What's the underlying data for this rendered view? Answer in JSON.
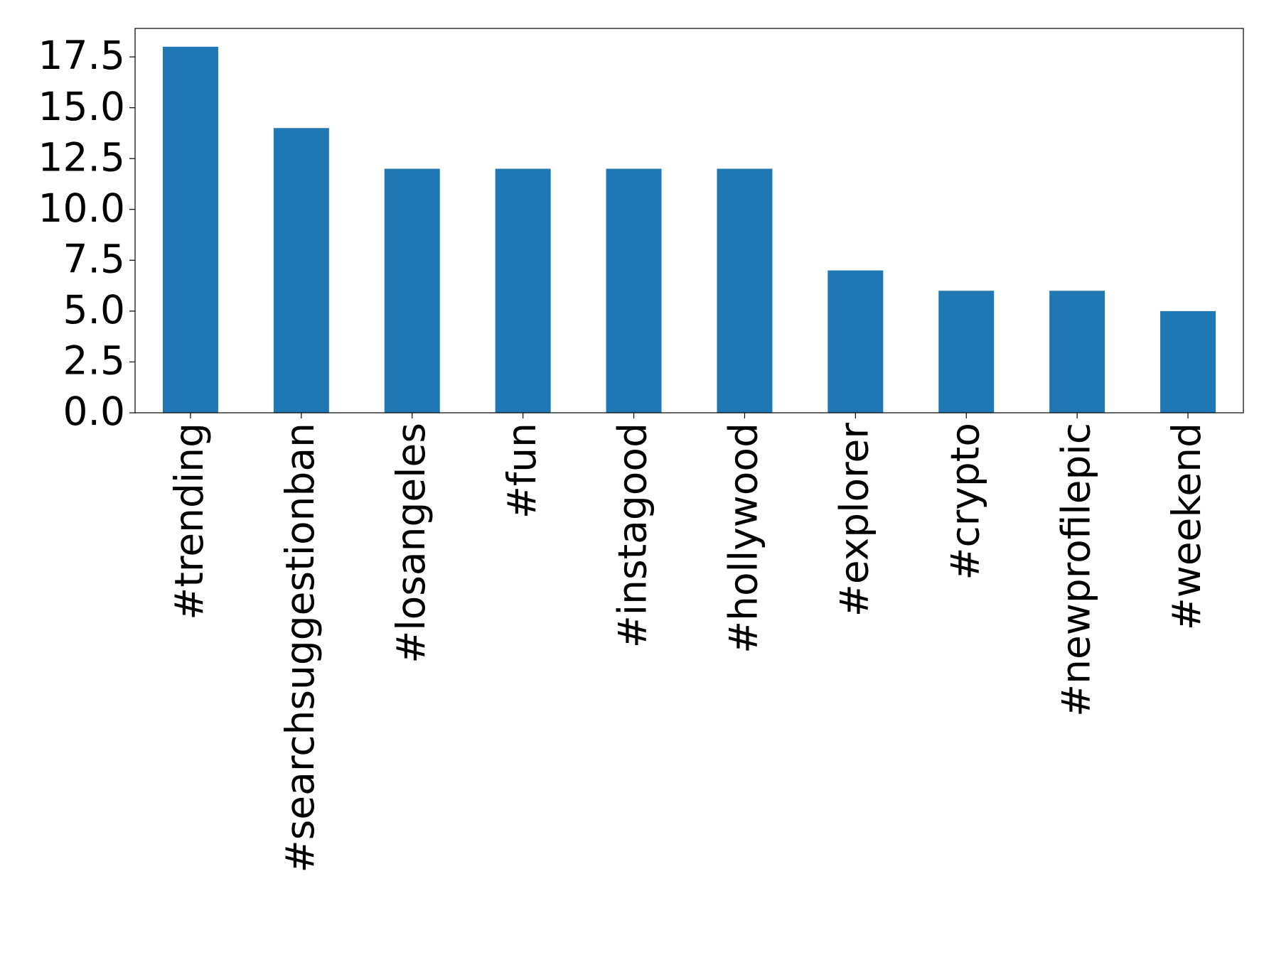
{
  "chart_data": {
    "type": "bar",
    "categories": [
      "#trending",
      "#searchsuggestionban",
      "#losangeles",
      "#fun",
      "#instagood",
      "#hollywood",
      "#explorer",
      "#crypto",
      "#newprofilepic",
      "#weekend"
    ],
    "values": [
      18,
      14,
      12,
      12,
      12,
      12,
      7,
      6,
      6,
      5
    ],
    "color": "#1f77b4",
    "ylim": [
      0,
      18.9
    ],
    "yticks": [
      {
        "value": 0,
        "label": "0.0"
      },
      2.5,
      {
        "value": 5,
        "label": "5.0"
      },
      7.5,
      {
        "value": 10,
        "label": "10.0"
      },
      12.5,
      {
        "value": 15,
        "label": "15.0"
      },
      17.5
    ],
    "grid": false
  }
}
